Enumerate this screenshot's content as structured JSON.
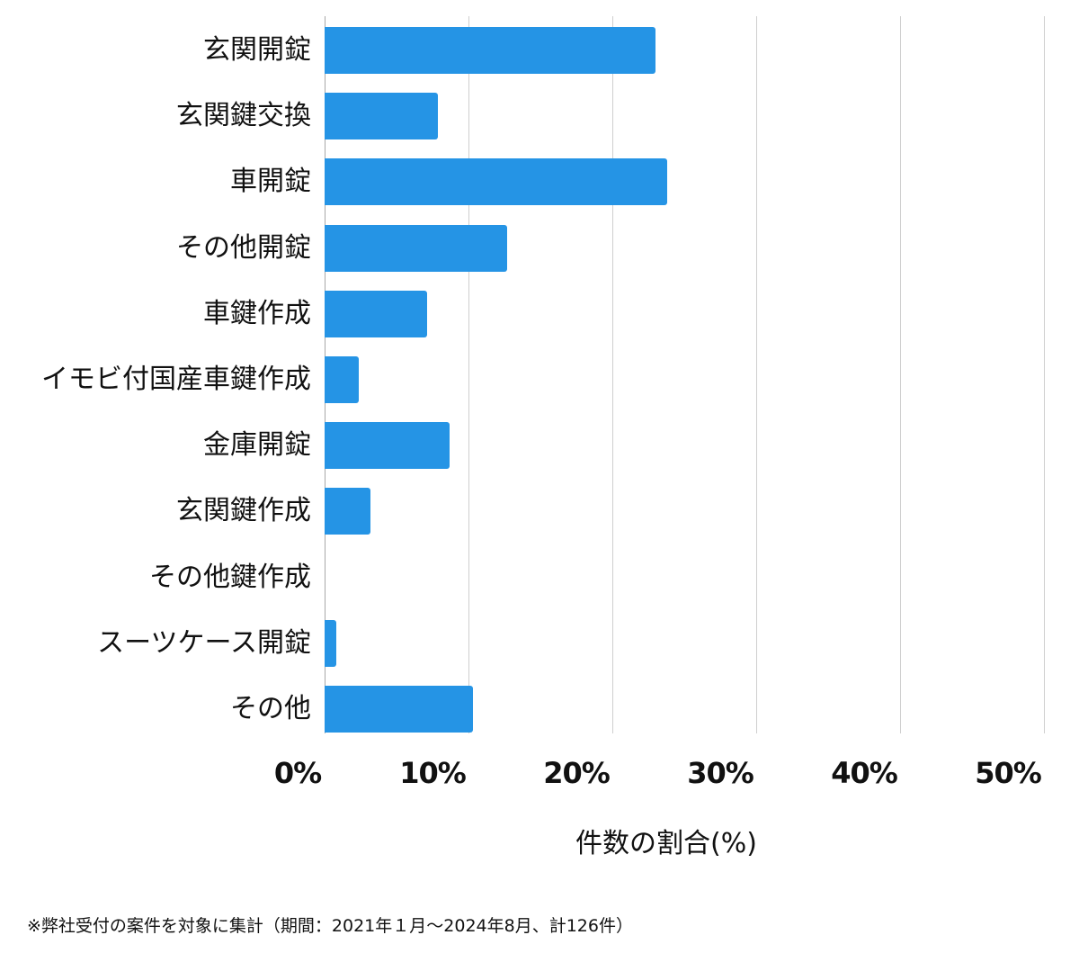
{
  "chart_data": {
    "type": "bar",
    "orientation": "horizontal",
    "title": "",
    "categories": [
      "玄関開錠",
      "玄関鍵交換",
      "車開錠",
      "その他開錠",
      "車鍵作成",
      "イモビ付国産車鍵作成",
      "金庫開錠",
      "玄関鍵作成",
      "その他鍵作成",
      "スーツケース開錠",
      "その他"
    ],
    "values": [
      23.0,
      7.9,
      23.8,
      12.7,
      7.1,
      2.4,
      8.7,
      3.2,
      0.0,
      0.8,
      10.3
    ],
    "xlabel": "件数の割合(%)",
    "ylabel": "",
    "xlim": [
      0,
      50
    ],
    "xticks": [
      "0%",
      "10%",
      "20%",
      "30%",
      "40%",
      "50%"
    ],
    "grid": true,
    "bar_color": "#2594e5",
    "legend": null
  },
  "footnote": "※弊社受付の案件を対象に集計（期間：2021年１月〜2024年8月、計126件）"
}
